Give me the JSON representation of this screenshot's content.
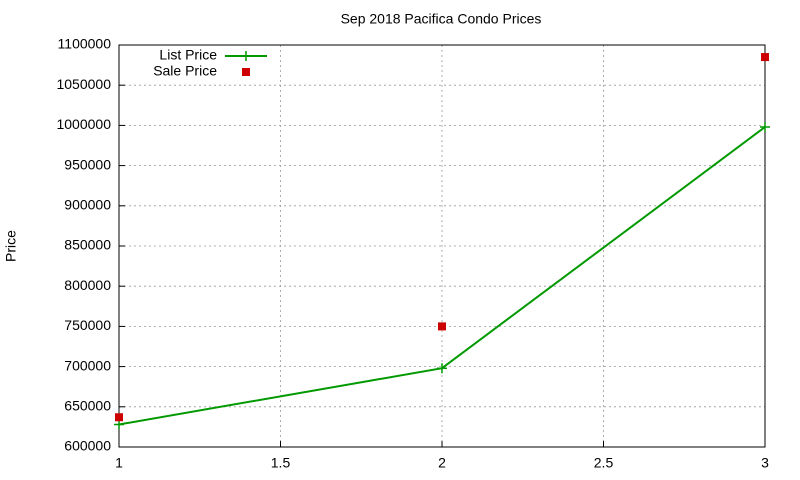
{
  "chart_data": {
    "type": "line",
    "title": "Sep 2018 Pacifica Condo Prices",
    "y_label": "Price",
    "x": [
      1,
      2,
      3
    ],
    "series": [
      {
        "name": "List Price",
        "color": "#009900",
        "mode": "linespoints",
        "values": [
          628000,
          698000,
          998000
        ]
      },
      {
        "name": "Sale Price",
        "color": "#cc0000",
        "mode": "points",
        "values": [
          637000,
          750000,
          1085000
        ]
      }
    ],
    "xlim": [
      1,
      3
    ],
    "xticks": [
      1,
      1.5,
      2,
      2.5,
      3
    ],
    "ylim": [
      600000,
      1100000
    ],
    "yticks": [
      600000,
      650000,
      700000,
      750000,
      800000,
      850000,
      900000,
      950000,
      1000000,
      1050000,
      1100000
    ],
    "grid": true,
    "legend": "top-left"
  }
}
